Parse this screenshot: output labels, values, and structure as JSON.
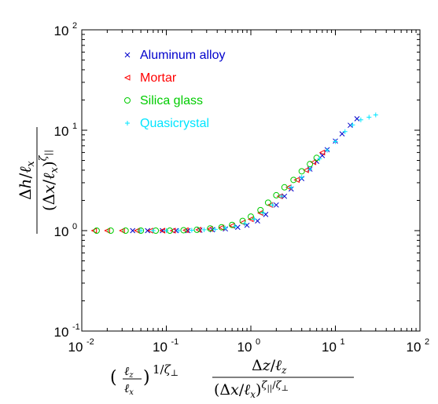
{
  "chart_data": {
    "type": "scatter",
    "xscale": "log",
    "yscale": "log",
    "xlim": [
      0.01,
      100
    ],
    "ylim": [
      0.1,
      100
    ],
    "x_ticks": [
      {
        "base": "10",
        "exp": "-2",
        "value": 0.01
      },
      {
        "base": "10",
        "exp": "-1",
        "value": 0.1
      },
      {
        "base": "10",
        "exp": "0",
        "value": 1
      },
      {
        "base": "10",
        "exp": "1",
        "value": 10
      },
      {
        "base": "10",
        "exp": "2",
        "value": 100
      }
    ],
    "y_ticks": [
      {
        "base": "10",
        "exp": "-1",
        "value": 0.1
      },
      {
        "base": "10",
        "exp": "0",
        "value": 1
      },
      {
        "base": "10",
        "exp": "1",
        "value": 10
      },
      {
        "base": "10",
        "exp": "2",
        "value": 100
      }
    ],
    "xlabel": "(ℓz/ℓx)^(1/ζ⊥) (Δz/ℓz)/(Δx/ℓx)^(ζ||/ζ⊥)",
    "ylabel": "(Δh/ℓx)/(Δx/ℓx)^ζ||",
    "grid": false,
    "legend_position": "top-left",
    "series": [
      {
        "name": "Aluminum alloy",
        "marker": "x",
        "color": "#0000cc",
        "points": [
          [
            0.04,
            1.0
          ],
          [
            0.06,
            1.0
          ],
          [
            0.09,
            1.0
          ],
          [
            0.13,
            1.0
          ],
          [
            0.18,
            1.0
          ],
          [
            0.25,
            1.01
          ],
          [
            0.35,
            1.02
          ],
          [
            0.5,
            1.04
          ],
          [
            0.7,
            1.08
          ],
          [
            0.9,
            1.13
          ],
          [
            1.2,
            1.25
          ],
          [
            1.5,
            1.45
          ],
          [
            2.0,
            1.8
          ],
          [
            2.5,
            2.2
          ],
          [
            3.0,
            2.6
          ],
          [
            4.0,
            3.3
          ],
          [
            5.0,
            4.1
          ],
          [
            6.0,
            4.9
          ],
          [
            7.0,
            5.6
          ],
          [
            8.0,
            6.4
          ],
          [
            10,
            7.8
          ],
          [
            12,
            9.2
          ],
          [
            15,
            11.2
          ],
          [
            18,
            13.0
          ]
        ]
      },
      {
        "name": "Mortar",
        "marker": "triangle-left",
        "color": "#ff0000",
        "points": [
          [
            0.014,
            1.0
          ],
          [
            0.02,
            1.0
          ],
          [
            0.03,
            1.0
          ],
          [
            0.045,
            1.0
          ],
          [
            0.065,
            1.0
          ],
          [
            0.09,
            1.0
          ],
          [
            0.12,
            1.0
          ],
          [
            0.17,
            1.01
          ],
          [
            0.24,
            1.02
          ],
          [
            0.33,
            1.04
          ],
          [
            0.45,
            1.07
          ],
          [
            0.6,
            1.12
          ],
          [
            0.8,
            1.2
          ],
          [
            1.0,
            1.3
          ],
          [
            1.3,
            1.5
          ],
          [
            1.7,
            1.8
          ],
          [
            2.2,
            2.2
          ],
          [
            2.8,
            2.7
          ],
          [
            3.5,
            3.2
          ],
          [
            4.5,
            4.0
          ],
          [
            5.5,
            4.8
          ],
          [
            7.0,
            6.0
          ]
        ]
      },
      {
        "name": "Silica glass",
        "marker": "circle",
        "color": "#00cc00",
        "points": [
          [
            0.015,
            1.0
          ],
          [
            0.022,
            1.0
          ],
          [
            0.033,
            1.0
          ],
          [
            0.05,
            1.0
          ],
          [
            0.075,
            1.0
          ],
          [
            0.11,
            1.0
          ],
          [
            0.16,
            1.01
          ],
          [
            0.23,
            1.02
          ],
          [
            0.33,
            1.05
          ],
          [
            0.45,
            1.08
          ],
          [
            0.6,
            1.14
          ],
          [
            0.8,
            1.25
          ],
          [
            1.0,
            1.38
          ],
          [
            1.3,
            1.6
          ],
          [
            1.6,
            1.9
          ],
          [
            2.0,
            2.25
          ],
          [
            2.5,
            2.7
          ],
          [
            3.2,
            3.2
          ],
          [
            4.0,
            3.9
          ],
          [
            5.0,
            4.6
          ],
          [
            6.0,
            5.3
          ]
        ]
      },
      {
        "name": "Quasicrystal",
        "marker": "plus",
        "color": "#00e5ff",
        "points": [
          [
            0.05,
            1.0
          ],
          [
            0.07,
            1.0
          ],
          [
            0.1,
            1.0
          ],
          [
            0.14,
            1.0
          ],
          [
            0.2,
            1.01
          ],
          [
            0.28,
            1.02
          ],
          [
            0.38,
            1.03
          ],
          [
            0.5,
            1.06
          ],
          [
            0.65,
            1.1
          ],
          [
            0.85,
            1.17
          ],
          [
            1.1,
            1.3
          ],
          [
            1.4,
            1.5
          ],
          [
            1.8,
            1.8
          ],
          [
            2.3,
            2.2
          ],
          [
            3.0,
            2.7
          ],
          [
            4.0,
            3.4
          ],
          [
            5.0,
            4.1
          ],
          [
            6.5,
            5.2
          ],
          [
            8.0,
            6.3
          ],
          [
            10,
            7.7
          ],
          [
            13,
            9.7
          ],
          [
            16,
            11.3
          ],
          [
            20,
            12.7
          ],
          [
            25,
            13.5
          ],
          [
            30,
            14.2
          ]
        ]
      }
    ]
  }
}
